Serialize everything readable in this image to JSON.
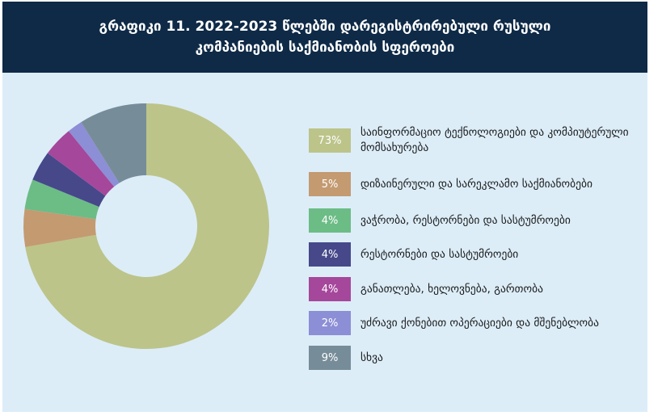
{
  "header": {
    "title_line1": "გრაფიკი 11. 2022-2023 წლებში დარეგისტრირებული რუსული",
    "title_line2": "კომპანიების საქმიანობის სფეროები"
  },
  "chart_data": {
    "type": "pie",
    "variant": "donut",
    "title": "გრაფიკი 11. 2022-2023 წლებში დარეგისტრირებული რუსული კომპანიების საქმიანობის სფეროები",
    "slices": [
      {
        "label": "საინფორმაციო ტექნოლოგიები და კომპიუტერული მომსახურება",
        "value": 73,
        "value_label": "73%",
        "color": "#bcc48a"
      },
      {
        "label": "დიზაინერული და სარეკლამო საქმიანობები",
        "value": 5,
        "value_label": "5%",
        "color": "#c49a71"
      },
      {
        "label": "ვაჭრობა, რესტორნები და სასტუმროები",
        "value": 4,
        "value_label": "4%",
        "color": "#6cbc86"
      },
      {
        "label": "რესტორნები და სასტუმროები",
        "value": 4,
        "value_label": "4%",
        "color": "#46488a"
      },
      {
        "label": "განათლება, ხელოვნება, გართობა",
        "value": 4,
        "value_label": "4%",
        "color": "#a5479b"
      },
      {
        "label": "უძრავი ქონებით ოპერაციები და მშენებლობა",
        "value": 2,
        "value_label": "2%",
        "color": "#8c8ed6"
      },
      {
        "label": "სხვა",
        "value": 9,
        "value_label": "9%",
        "color": "#768d99"
      }
    ],
    "legend_position": "right"
  }
}
